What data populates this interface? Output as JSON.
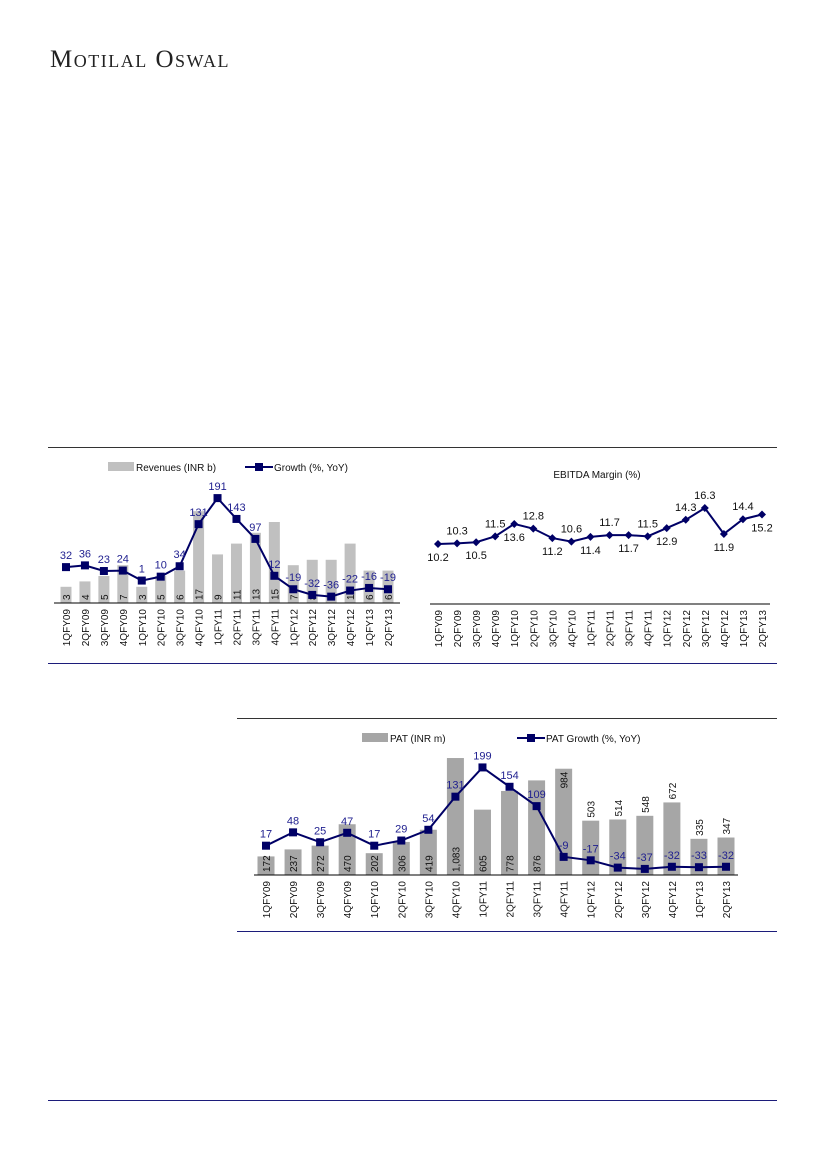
{
  "header": {
    "logo": "Motilal Oswal"
  },
  "colors": {
    "bar_light": "#c0c0c0",
    "bar_dark": "#a6a6a6",
    "line": "#000066",
    "label_blue": "#1f1f8f",
    "rule_navy": "#1c1c7a"
  },
  "chart_data": [
    {
      "type": "bar+line",
      "categories": [
        "1QFY09",
        "2QFY09",
        "3QFY09",
        "4QFY09",
        "1QFY10",
        "2QFY10",
        "3QFY10",
        "4QFY10",
        "1QFY11",
        "2QFY11",
        "3QFY11",
        "4QFY11",
        "1QFY12",
        "2QFY12",
        "3QFY12",
        "4QFY12",
        "1QFY13",
        "2QFY13"
      ],
      "series": [
        {
          "name": "Revenues (INR b)",
          "kind": "bar",
          "values": [
            3,
            4,
            5,
            7,
            3,
            5,
            6,
            17,
            9,
            11,
            13,
            15,
            7,
            8,
            8,
            11,
            6,
            6
          ]
        },
        {
          "name": "Growth (%, YoY)",
          "kind": "line",
          "values": [
            32,
            36,
            23,
            24,
            1,
            10,
            34,
            131,
            191,
            143,
            97,
            12,
            -19,
            -32,
            -36,
            -22,
            -16,
            -19
          ]
        }
      ],
      "legend": "top"
    },
    {
      "type": "line",
      "title": "EBITDA Margin (%)",
      "categories": [
        "1QFY09",
        "2QFY09",
        "3QFY09",
        "4QFY09",
        "1QFY10",
        "2QFY10",
        "3QFY10",
        "4QFY10",
        "1QFY11",
        "2QFY11",
        "3QFY11",
        "4QFY11",
        "1QFY12",
        "2QFY12",
        "3QFY12",
        "4QFY12",
        "1QFY13",
        "2QFY13"
      ],
      "series": [
        {
          "name": "EBITDA Margin (%)",
          "values": [
            10.2,
            10.3,
            10.5,
            11.5,
            13.6,
            12.8,
            11.2,
            10.6,
            11.4,
            11.7,
            11.7,
            11.5,
            12.9,
            14.3,
            16.3,
            11.9,
            14.4,
            15.2
          ]
        }
      ],
      "label_positions": [
        "below",
        "above",
        "below",
        "above",
        "below",
        "above",
        "below",
        "above",
        "below",
        "above",
        "below",
        "above",
        "below",
        "above",
        "above",
        "below",
        "above",
        "below"
      ]
    },
    {
      "type": "bar+line",
      "categories": [
        "1QFY09",
        "2QFY09",
        "3QFY09",
        "4QFY09",
        "1QFY10",
        "2QFY10",
        "3QFY10",
        "4QFY10",
        "1QFY11",
        "2QFY11",
        "3QFY11",
        "4QFY11",
        "1QFY12",
        "2QFY12",
        "3QFY12",
        "4QFY12",
        "1QFY13",
        "2QFY13"
      ],
      "series": [
        {
          "name": "PAT (INR m)",
          "kind": "bar",
          "values": [
            172,
            237,
            272,
            470,
            202,
            306,
            419,
            1083,
            605,
            778,
            876,
            984,
            503,
            514,
            548,
            672,
            335,
            347
          ],
          "value_labels": [
            "172",
            "237",
            "272",
            "470",
            "202",
            "306",
            "419",
            "1,083",
            "605",
            "778",
            "876",
            "984",
            "503",
            "514",
            "548",
            "672",
            "335",
            "347"
          ]
        },
        {
          "name": "PAT Growth (%, YoY)",
          "kind": "line",
          "values": [
            17,
            48,
            25,
            47,
            17,
            29,
            54,
            131,
            199,
            154,
            109,
            -9,
            -17,
            -34,
            -37,
            -32,
            -33,
            -32
          ]
        }
      ],
      "legend": "top"
    }
  ]
}
